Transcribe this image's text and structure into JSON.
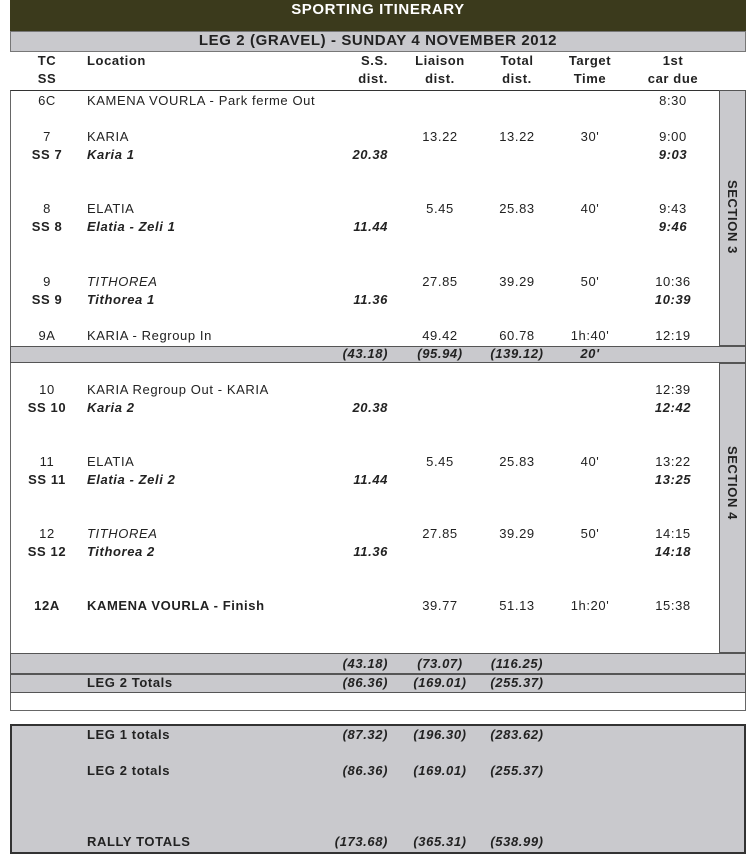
{
  "header": {
    "title": "SPORTING ITINERARY",
    "leg": "LEG 2 (GRAVEL) - SUNDAY 4 NOVEMBER 2012"
  },
  "columns": [
    [
      "TC",
      "SS"
    ],
    [
      "Location"
    ],
    [
      "S.S.",
      "dist."
    ],
    [
      "Liaison",
      "dist."
    ],
    [
      "Total",
      "dist."
    ],
    [
      "Target",
      "Time"
    ],
    [
      "1st",
      "car due"
    ]
  ],
  "rows": [
    {
      "tc": "6C",
      "location": "KAMENA VOURLA - Park ferme Out",
      "due": "8:30"
    },
    {
      "tc": "7",
      "location": "KARIA",
      "liaison": "13.22",
      "total": "13.22",
      "target": "30'",
      "due": "9:00"
    },
    {
      "tc": "SS 7",
      "location": "Karia 1",
      "ss": "20.38",
      "due": "9:03"
    },
    {
      "tc": "8",
      "location": "ELATIA",
      "liaison": "5.45",
      "total": "25.83",
      "target": "40'",
      "due": "9:43"
    },
    {
      "tc": "SS 8",
      "location": "Elatia - Zeli 1",
      "ss": "11.44",
      "due": "9:46"
    },
    {
      "tc": "9",
      "location": "TITHOREA",
      "liaison": "27.85",
      "total": "39.29",
      "target": "50'",
      "due": "10:36"
    },
    {
      "tc": "SS 9",
      "location": "Tithorea 1",
      "ss": "11.36",
      "due": "10:39"
    },
    {
      "tc": "9A",
      "location": "KARIA - Regroup In",
      "liaison": "49.42",
      "total": "60.78",
      "target": "1h:40'",
      "due": "12:19"
    },
    {
      "tc": "10",
      "location": "KARIA Regroup Out - KARIA",
      "due": "12:39"
    },
    {
      "tc": "SS 10",
      "location": "Karia 2",
      "ss": "20.38",
      "due": "12:42"
    },
    {
      "tc": "11",
      "location": "ELATIA",
      "liaison": "5.45",
      "total": "25.83",
      "target": "40'",
      "due": "13:22"
    },
    {
      "tc": "SS 11",
      "location": "Elatia - Zeli 2",
      "ss": "11.44",
      "due": "13:25"
    },
    {
      "tc": "12",
      "location": "TITHOREA",
      "liaison": "27.85",
      "total": "39.29",
      "target": "50'",
      "due": "14:15"
    },
    {
      "tc": "SS 12",
      "location": "Tithorea 2",
      "ss": "11.36",
      "due": "14:18"
    },
    {
      "tc": "12A",
      "location": "KAMENA VOURLA - Finish",
      "liaison": "39.77",
      "total": "51.13",
      "target": "1h:20'",
      "due": "15:38"
    }
  ],
  "section_labels": [
    "SECTION 3",
    "SECTION 4"
  ],
  "section3_subtotal": {
    "ss": "(43.18)",
    "liaison": "(95.94)",
    "total": "(139.12)",
    "target": "20'"
  },
  "section4_subtotal": {
    "ss": "(43.18)",
    "liaison": "(73.07)",
    "total": "(116.25)"
  },
  "leg_totals": {
    "location": "LEG 2 Totals",
    "ss": "(86.36)",
    "liaison": "(169.01)",
    "total": "(255.37)"
  },
  "summary": [
    {
      "location": "LEG 1 totals",
      "ss": "(87.32)",
      "liaison": "(196.30)",
      "total": "(283.62)"
    },
    {
      "location": "LEG 2 totals",
      "ss": "(86.36)",
      "liaison": "(169.01)",
      "total": "(255.37)"
    },
    {
      "location": "RALLY TOTALS",
      "ss": "(173.68)",
      "liaison": "(365.31)",
      "total": "(538.99)"
    }
  ]
}
